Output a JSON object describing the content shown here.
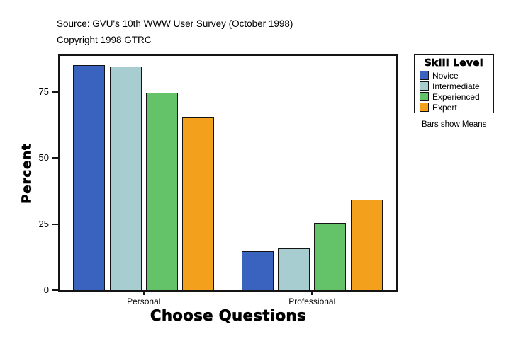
{
  "header": {
    "source_line": "Source: GVU's 10th WWW User Survey (October 1998)",
    "copyright_line": "Copyright 1998 GTRC"
  },
  "chart_data": {
    "type": "bar",
    "title": "",
    "xlabel": "Choose Questions",
    "ylabel": "Percent",
    "categories": [
      "Personal",
      "Professional"
    ],
    "series": [
      {
        "name": "Novice",
        "color": "#3a63c0",
        "values": [
          85.0,
          14.7
        ]
      },
      {
        "name": "Intermediate",
        "color": "#a7cdd1",
        "values": [
          84.5,
          15.7
        ]
      },
      {
        "name": "Experienced",
        "color": "#64c268",
        "values": [
          74.8,
          25.3
        ]
      },
      {
        "name": "Expert",
        "color": "#f3a11d",
        "values": [
          65.3,
          34.2
        ]
      }
    ],
    "yticks": [
      0,
      25,
      50,
      75
    ],
    "ylim": [
      0,
      88.6
    ],
    "grid": false,
    "legend": {
      "title": "Skill Level",
      "position": "right",
      "note": "Bars show Means"
    }
  },
  "style": {
    "frame_color": "#141414",
    "background": "#ffffff"
  }
}
